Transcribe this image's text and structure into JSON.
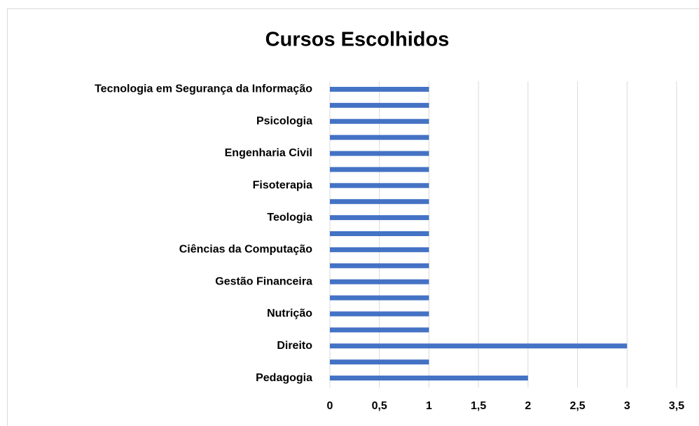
{
  "chart_data": {
    "type": "bar",
    "orientation": "horizontal",
    "title": "Cursos Escolhidos",
    "categories": [
      "Pedagogia",
      null,
      "Direito",
      null,
      "Nutrição",
      null,
      "Gestão Financeira",
      null,
      "Ciências da Computação",
      null,
      "Teologia",
      null,
      "Fisoterapia",
      null,
      "Engenharia Civil",
      null,
      "Psicologia",
      null,
      "Tecnologia em Segurança da Informação"
    ],
    "values": [
      2,
      1,
      3,
      1,
      1,
      1,
      1,
      1,
      1,
      1,
      1,
      1,
      1,
      1,
      1,
      1,
      1,
      1,
      1
    ],
    "color": "#4472c4",
    "xlim": [
      0,
      3.5
    ],
    "xticks": [
      0,
      {
        "value": 0.5,
        "label": "0,5"
      },
      1,
      {
        "value": 1.5,
        "label": "1,5"
      },
      2,
      {
        "value": 2.5,
        "label": "2,5"
      },
      3,
      {
        "value": 3.5,
        "label": "3,5"
      }
    ],
    "grid": true
  }
}
